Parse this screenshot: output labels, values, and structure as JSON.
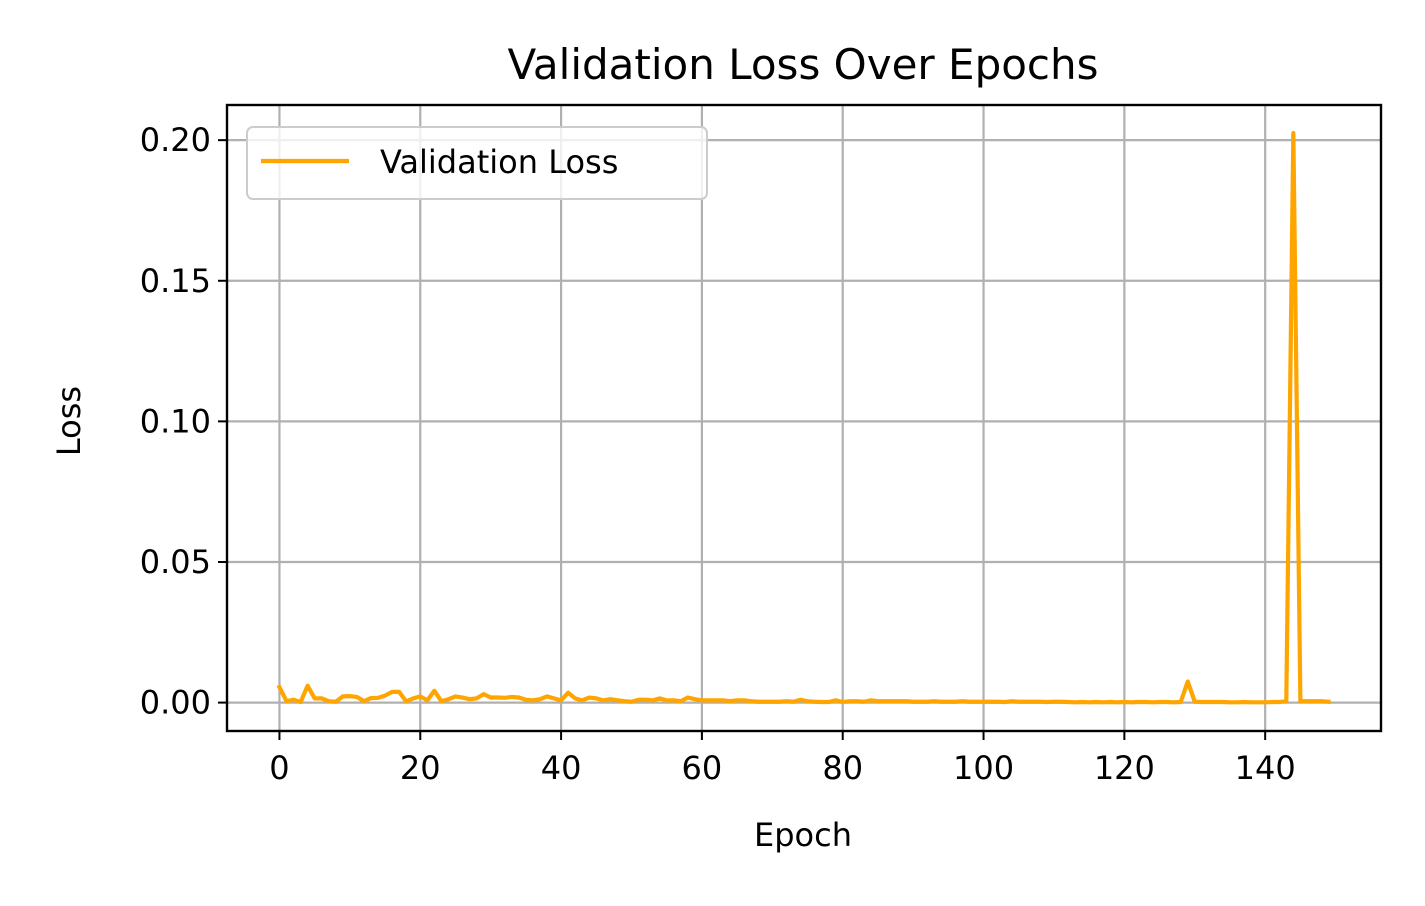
{
  "chart_data": {
    "type": "line",
    "title": "Validation Loss Over Epochs",
    "xlabel": "Epoch",
    "ylabel": "Loss",
    "xlim": [
      -7.45,
      156.45
    ],
    "ylim": [
      -0.0101,
      0.2125
    ],
    "xticks": [
      0,
      20,
      40,
      60,
      80,
      100,
      120,
      140
    ],
    "xtick_labels": [
      "0",
      "20",
      "40",
      "60",
      "80",
      "100",
      "120",
      "140"
    ],
    "yticks": [
      0.0,
      0.05,
      0.1,
      0.15,
      0.2
    ],
    "ytick_labels": [
      "0.00",
      "0.05",
      "0.10",
      "0.15",
      "0.20"
    ],
    "grid": true,
    "legend_position": "upper-left",
    "series": [
      {
        "name": "Validation Loss",
        "color": "#ffa500",
        "x": [
          0,
          1,
          2,
          3,
          4,
          5,
          6,
          7,
          8,
          9,
          10,
          11,
          12,
          13,
          14,
          15,
          16,
          17,
          18,
          19,
          20,
          21,
          22,
          23,
          24,
          25,
          26,
          27,
          28,
          29,
          30,
          31,
          32,
          33,
          34,
          35,
          36,
          37,
          38,
          39,
          40,
          41,
          42,
          43,
          44,
          45,
          46,
          47,
          48,
          49,
          50,
          51,
          52,
          53,
          54,
          55,
          56,
          57,
          58,
          59,
          60,
          61,
          62,
          63,
          64,
          65,
          66,
          67,
          68,
          69,
          70,
          71,
          72,
          73,
          74,
          75,
          76,
          77,
          78,
          79,
          80,
          81,
          82,
          83,
          84,
          85,
          86,
          87,
          88,
          89,
          90,
          91,
          92,
          93,
          94,
          95,
          96,
          97,
          98,
          99,
          100,
          101,
          102,
          103,
          104,
          105,
          106,
          107,
          108,
          109,
          110,
          111,
          112,
          113,
          114,
          115,
          116,
          117,
          118,
          119,
          120,
          121,
          122,
          123,
          124,
          125,
          126,
          127,
          128,
          129,
          130,
          131,
          132,
          133,
          134,
          135,
          136,
          137,
          138,
          139,
          140,
          141,
          142,
          143,
          144,
          145,
          146,
          147,
          148,
          149
        ],
        "y": [
          0.0055,
          0.0005,
          0.001,
          0.0002,
          0.006,
          0.0015,
          0.0015,
          0.0005,
          0.0003,
          0.0022,
          0.0023,
          0.002,
          0.0005,
          0.0016,
          0.0017,
          0.0025,
          0.0038,
          0.0038,
          0.0004,
          0.0015,
          0.0022,
          0.0008,
          0.0042,
          0.0005,
          0.0012,
          0.0022,
          0.0018,
          0.0012,
          0.0015,
          0.003,
          0.0018,
          0.0018,
          0.0017,
          0.002,
          0.0018,
          0.001,
          0.0008,
          0.0012,
          0.0022,
          0.0015,
          0.0008,
          0.0035,
          0.0015,
          0.0008,
          0.0018,
          0.0015,
          0.0008,
          0.0012,
          0.0008,
          0.0005,
          0.0003,
          0.001,
          0.001,
          0.0008,
          0.0015,
          0.0008,
          0.0008,
          0.0005,
          0.0018,
          0.0012,
          0.0008,
          0.0008,
          0.0008,
          0.0008,
          0.0005,
          0.0008,
          0.0008,
          0.0005,
          0.0003,
          0.0003,
          0.0003,
          0.0003,
          0.0005,
          0.0003,
          0.001,
          0.0005,
          0.0003,
          0.0002,
          0.0002,
          0.0008,
          0.0002,
          0.0005,
          0.0005,
          0.0003,
          0.0008,
          0.0005,
          0.0005,
          0.0005,
          0.0005,
          0.0005,
          0.0003,
          0.0003,
          0.0003,
          0.0005,
          0.0003,
          0.0003,
          0.0003,
          0.0005,
          0.0003,
          0.0003,
          0.0003,
          0.0003,
          0.0003,
          0.0002,
          0.0005,
          0.0003,
          0.0003,
          0.0003,
          0.0003,
          0.0002,
          0.0003,
          0.0003,
          0.0002,
          0.0001,
          0.0002,
          0.0001,
          0.0002,
          0.0001,
          0.0002,
          0.0001,
          0.0002,
          0.0001,
          0.0002,
          0.0002,
          0.0001,
          0.0002,
          0.0002,
          0.0001,
          0.0002,
          0.0075,
          0.0003,
          0.0002,
          0.0002,
          0.0002,
          0.0002,
          0.0001,
          0.0001,
          0.0002,
          0.0001,
          0.0001,
          0.0001,
          0.0002,
          0.0002,
          0.0005,
          0.2025,
          0.0005,
          0.0005,
          0.0005,
          0.0005,
          0.0003
        ]
      }
    ]
  }
}
